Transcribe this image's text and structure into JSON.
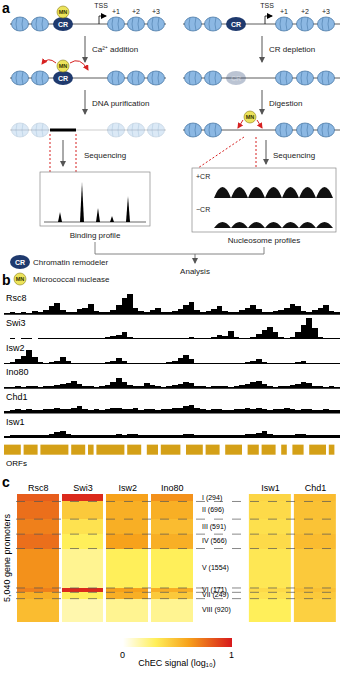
{
  "panels": [
    "a",
    "b",
    "c"
  ],
  "diagram": {
    "labels": {
      "remodeler": "CR",
      "nuclease": "MN",
      "tss": "TSS",
      "nucleosomes": [
        "+1",
        "+2",
        "+3"
      ]
    },
    "left_steps": [
      "Ca²⁺ addition",
      "DNA purification",
      "Sequencing"
    ],
    "right_steps": [
      "CR depletion",
      "Digestion",
      "Sequencing"
    ],
    "binding_profile": "Binding profile",
    "nucleosome_profiles": {
      "title": "Nucleosome profiles",
      "conditions": [
        "+CR",
        "−CR"
      ]
    },
    "analysis": "Analysis",
    "legend": [
      {
        "icon": "CR",
        "text": "Chromatin remodeler"
      },
      {
        "icon": "MN",
        "text": "Micrococcal nuclease"
      }
    ]
  },
  "chart_data": [
    {
      "type": "bar",
      "tick_labels": false,
      "xlim": [
        -0.5,
        59.5
      ],
      "ylim": [
        0,
        1
      ],
      "series": [
        {
          "name": "Rsc8",
          "color": "#000000",
          "values": [
            0.08,
            0.1,
            0.07,
            0.12,
            0.09,
            0.15,
            0.1,
            0.2,
            0.35,
            0.5,
            0.2,
            0.1,
            0.12,
            0.25,
            0.3,
            0.45,
            0.15,
            0.1,
            0.12,
            0.2,
            0.4,
            0.7,
            0.9,
            0.3,
            0.15,
            0.1,
            0.2,
            0.3,
            0.12,
            0.1,
            0.15,
            0.25,
            0.4,
            0.55,
            0.2,
            0.1,
            0.15,
            0.25,
            0.35,
            0.15,
            0.1,
            0.12,
            0.2,
            0.3,
            0.4,
            0.25,
            0.12,
            0.1,
            0.15,
            0.2,
            0.3,
            0.45,
            0.35,
            0.15,
            0.1,
            0.2,
            0.3,
            0.4,
            0.15,
            0.1
          ]
        },
        {
          "name": "Swi3",
          "color": "#000000",
          "values": [
            0.03,
            0.04,
            0.03,
            0.05,
            0.04,
            0.03,
            0.05,
            0.04,
            0.06,
            0.05,
            0.04,
            0.05,
            0.06,
            0.08,
            0.05,
            0.04,
            0.06,
            0.05,
            0.1,
            0.15,
            0.2,
            0.3,
            0.12,
            0.06,
            0.05,
            0.04,
            0.06,
            0.08,
            0.05,
            0.04,
            0.05,
            0.06,
            0.08,
            0.1,
            0.06,
            0.05,
            0.08,
            0.12,
            0.2,
            0.15,
            0.35,
            0.1,
            0.08,
            0.06,
            0.1,
            0.25,
            0.4,
            0.55,
            0.3,
            0.1,
            0.08,
            0.12,
            0.3,
            0.6,
            0.9,
            0.5,
            0.12,
            0.08,
            0.06,
            0.05
          ]
        },
        {
          "name": "Isw2",
          "color": "#000000",
          "values": [
            0.05,
            0.1,
            0.2,
            0.35,
            0.6,
            0.3,
            0.08,
            0.05,
            0.1,
            0.15,
            0.3,
            0.12,
            0.06,
            0.05,
            0.04,
            0.06,
            0.05,
            0.04,
            0.08,
            0.15,
            0.25,
            0.12,
            0.06,
            0.05,
            0.04,
            0.05,
            0.06,
            0.04,
            0.05,
            0.08,
            0.15,
            0.25,
            0.4,
            0.2,
            0.06,
            0.05,
            0.04,
            0.05,
            0.06,
            0.05,
            0.04,
            0.05,
            0.06,
            0.1,
            0.15,
            0.2,
            0.08,
            0.05,
            0.04,
            0.05,
            0.06,
            0.05,
            0.08,
            0.12,
            0.06,
            0.05,
            0.04,
            0.05,
            0.06,
            0.04
          ]
        },
        {
          "name": "Ino80",
          "color": "#000000",
          "values": [
            0.06,
            0.08,
            0.1,
            0.08,
            0.12,
            0.1,
            0.08,
            0.1,
            0.12,
            0.15,
            0.2,
            0.25,
            0.35,
            0.2,
            0.12,
            0.1,
            0.08,
            0.1,
            0.15,
            0.3,
            0.45,
            0.3,
            0.15,
            0.12,
            0.1,
            0.25,
            0.15,
            0.1,
            0.08,
            0.1,
            0.15,
            0.2,
            0.3,
            0.25,
            0.12,
            0.1,
            0.08,
            0.1,
            0.12,
            0.1,
            0.08,
            0.1,
            0.15,
            0.2,
            0.3,
            0.35,
            0.2,
            0.1,
            0.08,
            0.1,
            0.12,
            0.15,
            0.2,
            0.3,
            0.25,
            0.12,
            0.1,
            0.08,
            0.1,
            0.08
          ]
        },
        {
          "name": "Chd1",
          "color": "#000000",
          "values": [
            0.12,
            0.15,
            0.18,
            0.14,
            0.2,
            0.16,
            0.14,
            0.18,
            0.2,
            0.22,
            0.18,
            0.2,
            0.25,
            0.3,
            0.2,
            0.16,
            0.18,
            0.15,
            0.2,
            0.22,
            0.25,
            0.2,
            0.18,
            0.22,
            0.16,
            0.18,
            0.2,
            0.15,
            0.18,
            0.2,
            0.22,
            0.25,
            0.3,
            0.35,
            0.22,
            0.18,
            0.16,
            0.2,
            0.18,
            0.15,
            0.16,
            0.18,
            0.2,
            0.22,
            0.18,
            0.25,
            0.2,
            0.16,
            0.18,
            0.2,
            0.22,
            0.18,
            0.16,
            0.2,
            0.18,
            0.15,
            0.17,
            0.2,
            0.16,
            0.14
          ]
        },
        {
          "name": "Isw1",
          "color": "#000000",
          "values": [
            0.1,
            0.12,
            0.14,
            0.12,
            0.15,
            0.13,
            0.12,
            0.15,
            0.2,
            0.25,
            0.3,
            0.2,
            0.15,
            0.12,
            0.14,
            0.12,
            0.15,
            0.13,
            0.12,
            0.15,
            0.18,
            0.15,
            0.2,
            0.16,
            0.13,
            0.12,
            0.14,
            0.15,
            0.12,
            0.13,
            0.15,
            0.14,
            0.18,
            0.2,
            0.15,
            0.13,
            0.12,
            0.14,
            0.13,
            0.12,
            0.14,
            0.13,
            0.15,
            0.18,
            0.2,
            0.22,
            0.3,
            0.18,
            0.14,
            0.13,
            0.15,
            0.14,
            0.16,
            0.18,
            0.15,
            0.13,
            0.12,
            0.14,
            0.13,
            0.12
          ]
        }
      ],
      "orf_track": {
        "name": "ORFs",
        "color": "#d4a017",
        "intervals": [
          [
            -0.5,
            2.5
          ],
          [
            3,
            5.5
          ],
          [
            6,
            11
          ],
          [
            11.5,
            14
          ],
          [
            14.5,
            15.5
          ],
          [
            16,
            21
          ],
          [
            21.5,
            24
          ],
          [
            25,
            27
          ],
          [
            27.5,
            31
          ],
          [
            32,
            35
          ],
          [
            35.5,
            38
          ],
          [
            39,
            42
          ],
          [
            43,
            45
          ],
          [
            45.5,
            48
          ],
          [
            49,
            50
          ],
          [
            51,
            53
          ],
          [
            54,
            57
          ],
          [
            57.5,
            58.5
          ]
        ]
      }
    },
    {
      "type": "heatmap",
      "tick_labels": "x",
      "y_label": "5,040 gene promoters",
      "ylim": [
        0,
        5041
      ],
      "columns": [
        {
          "name": "Rsc8",
          "values": [
            0.8,
            0.75,
            0.7,
            0.75,
            0.65,
            0.7,
            0.55,
            0.5
          ]
        },
        {
          "name": "Swi3",
          "values": [
            0.95,
            0.45,
            0.35,
            0.3,
            0.2,
            0.95,
            0.3,
            0.15
          ]
        },
        {
          "name": "Isw2",
          "values": [
            0.6,
            0.55,
            0.55,
            0.6,
            0.3,
            0.6,
            0.55,
            0.2
          ]
        },
        {
          "name": "Ino80",
          "values": [
            0.65,
            0.55,
            0.5,
            0.55,
            0.3,
            0.55,
            0.45,
            0.2
          ]
        },
        {
          "name": "Isw1",
          "values": [
            0.4,
            0.38,
            0.36,
            0.38,
            0.33,
            0.38,
            0.35,
            0.3
          ]
        },
        {
          "name": "Chd1",
          "values": [
            0.5,
            0.48,
            0.47,
            0.5,
            0.45,
            0.48,
            0.45,
            0.42
          ]
        }
      ],
      "clusters": [
        {
          "label": "I (294)",
          "count": 294
        },
        {
          "label": "II (696)",
          "count": 696
        },
        {
          "label": "III (591)",
          "count": 591
        },
        {
          "label": "IV (566)",
          "count": 566
        },
        {
          "label": "V (1554)",
          "count": 1554
        },
        {
          "label": "VI (171)",
          "count": 171
        },
        {
          "label": "VII (249)",
          "count": 249
        },
        {
          "label": "VIII (920)",
          "count": 920
        }
      ],
      "colorbar": {
        "title": "ChEC signal (log₁₀)",
        "range": [
          0,
          1
        ],
        "ticks": [
          0,
          1
        ]
      }
    }
  ]
}
